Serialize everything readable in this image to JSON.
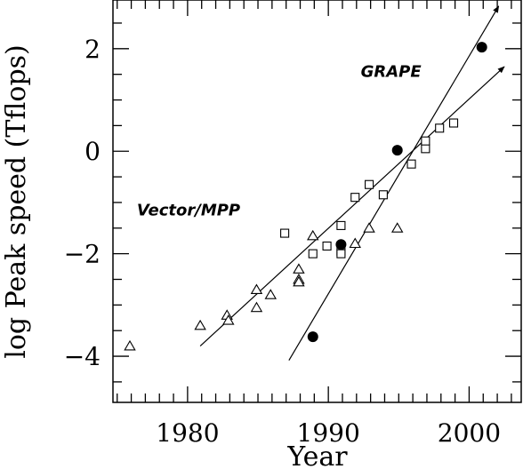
{
  "chart_data": {
    "type": "scatter",
    "title": "",
    "xlabel": "Year",
    "ylabel": "log Peak speed (Tflops)",
    "xlim": [
      1974.7,
      2003.7
    ],
    "ylim": [
      -4.9,
      2.95
    ],
    "x_ticks": [
      1980,
      1990,
      2000
    ],
    "x_tick_labels": [
      "1980",
      "1990",
      "2000"
    ],
    "y_ticks": [
      2,
      0,
      -2,
      -4
    ],
    "y_tick_labels": [
      "2",
      "0",
      "−2",
      "−4"
    ],
    "grid": false,
    "legend": "none",
    "annotations": [
      {
        "text": "GRAPE",
        "x": 1992.3,
        "y": 1.45
      },
      {
        "text": "Vector/MPP",
        "x": 1976.4,
        "y": -1.25
      }
    ],
    "series": [
      {
        "marker": "triangle",
        "points": [
          [
            1975.9,
            -3.8
          ],
          [
            1980.9,
            -3.4
          ],
          [
            1982.8,
            -3.2
          ],
          [
            1982.9,
            -3.3
          ],
          [
            1984.9,
            -2.7
          ],
          [
            1984.9,
            -3.05
          ],
          [
            1985.9,
            -2.8
          ],
          [
            1987.9,
            -2.3
          ],
          [
            1987.9,
            -2.5
          ],
          [
            1987.9,
            -2.55
          ],
          [
            1988.9,
            -1.65
          ],
          [
            1991.9,
            -1.8
          ],
          [
            1992.9,
            -1.5
          ],
          [
            1994.9,
            -1.5
          ]
        ]
      },
      {
        "marker": "square",
        "points": [
          [
            1986.9,
            -1.6
          ],
          [
            1988.9,
            -2.0
          ],
          [
            1989.9,
            -1.85
          ],
          [
            1990.9,
            -1.45
          ],
          [
            1990.9,
            -1.95
          ],
          [
            1990.9,
            -2.0
          ],
          [
            1991.9,
            -0.9
          ],
          [
            1992.9,
            -0.65
          ],
          [
            1993.9,
            -0.85
          ],
          [
            1995.9,
            -0.25
          ],
          [
            1996.9,
            0.05
          ],
          [
            1996.9,
            0.2
          ],
          [
            1997.9,
            0.45
          ],
          [
            1998.9,
            0.55
          ]
        ]
      },
      {
        "marker": "filled-circle",
        "points": [
          [
            1988.9,
            -3.62
          ],
          [
            1990.9,
            -1.82
          ],
          [
            1994.9,
            0.02
          ],
          [
            2000.9,
            2.03
          ]
        ]
      }
    ],
    "trend_lines": [
      {
        "from": [
          1980.9,
          -3.8
        ],
        "to": [
          2002.5,
          1.65
        ]
      },
      {
        "from": [
          1987.2,
          -4.08
        ],
        "to": [
          2002.1,
          2.83
        ]
      }
    ]
  }
}
